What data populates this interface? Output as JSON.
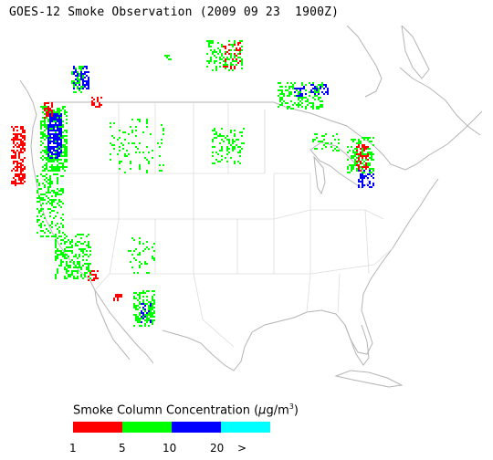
{
  "title": "GOES-12 Smoke Observation (2009 09 23  1900Z)",
  "legend": {
    "title": "Smoke Column Concentration (",
    "unit_mu": "μ",
    "unit_rest": "g/m",
    "unit_sup": "3",
    "unit_close": ")",
    "bins": [
      {
        "color": "#ff0000",
        "label": "1"
      },
      {
        "color": "#00ff00",
        "label": "5"
      },
      {
        "color": "#0000ff",
        "label": "10"
      },
      {
        "color": "#00ffff",
        "label": "20"
      }
    ],
    "overflow_label": ">"
  },
  "colors": {
    "coast": "#b4b4b4",
    "state_lines": "#dcdcdc",
    "light": "#ff0000",
    "moderate": "#00ff00",
    "heavy": "#0000ff",
    "very_heavy": "#00ffff"
  }
}
